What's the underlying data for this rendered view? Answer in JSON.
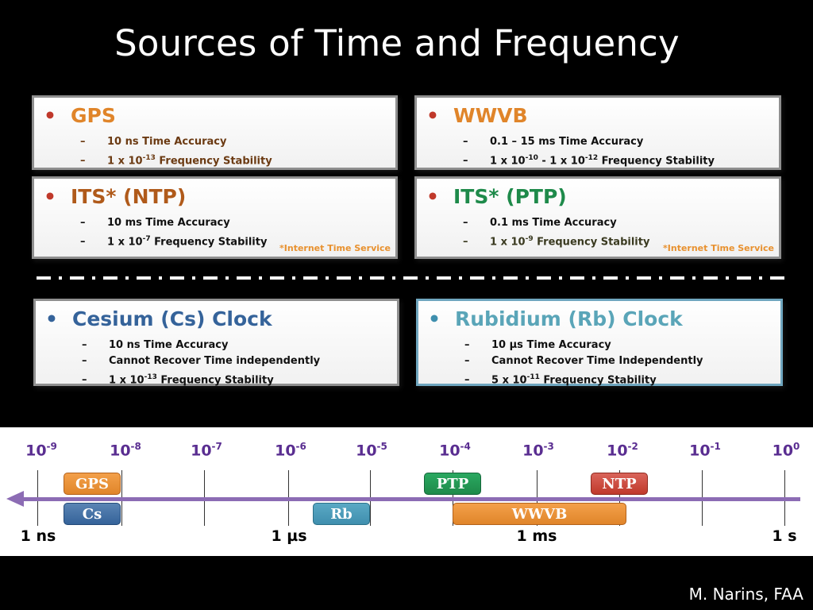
{
  "title": "Sources of Time and Frequency",
  "colors": {
    "orange": "#e0852a",
    "brown": "#b05a1a",
    "green": "#1e8a4a",
    "blue": "#35639a",
    "teal": "#3f8fae",
    "purple": "#5a2e91",
    "red": "#c0392b"
  },
  "cards": {
    "gps": {
      "bullet": "•",
      "title": "GPS",
      "items": [
        {
          "dash": "–",
          "a": "10 ns Time Accuracy"
        },
        {
          "dash": "–",
          "a": "1 x 10",
          "sup": "-13",
          "b": " Frequency Stability"
        }
      ]
    },
    "wwvb": {
      "bullet": "•",
      "title": "WWVB",
      "items": [
        {
          "dash": "–",
          "a": "0.1 – 15 ms Time Accuracy"
        },
        {
          "dash": "–",
          "a": "1 x 10",
          "sup": "-10",
          "b": " - 1 x 10",
          "sup2": "-12",
          "c": " Frequency Stability"
        }
      ]
    },
    "ntp": {
      "bullet": "•",
      "title": "ITS* (NTP)",
      "note": "*Internet Time Service",
      "items": [
        {
          "dash": "–",
          "a": "10 ms Time Accuracy"
        },
        {
          "dash": "–",
          "a": "1 x 10",
          "sup": "-7",
          "b": " Frequency Stability"
        }
      ]
    },
    "ptp": {
      "bullet": "•",
      "title": "ITS* (PTP)",
      "note": "*Internet Time Service",
      "items": [
        {
          "dash": "–",
          "a": "0.1 ms Time Accuracy"
        },
        {
          "dash": "–",
          "a": "1 x 10",
          "sup": "-9",
          "b": " Frequency Stability"
        }
      ]
    },
    "cs": {
      "bullet": "•",
      "title": "Cesium (Cs) Clock",
      "items": [
        {
          "dash": "–",
          "a": "10 ns Time Accuracy"
        },
        {
          "dash": "–",
          "a": "Cannot Recover Time independently"
        },
        {
          "dash": "–",
          "a": "1 x 10",
          "sup": "-13",
          "b": " Frequency Stability"
        }
      ]
    },
    "rb": {
      "bullet": "•",
      "title": "Rubidium (Rb) Clock",
      "items": [
        {
          "dash": "–",
          "a": "10 µs Time Accuracy"
        },
        {
          "dash": "–",
          "a": "Cannot Recover Time Independently"
        },
        {
          "dash": "–",
          "a": "5 x 10",
          "sup": "-11",
          "b": " Frequency Stability"
        }
      ]
    }
  },
  "scale": {
    "base": "10",
    "exponents": [
      "-9",
      "-8",
      "-7",
      "-6",
      "-5",
      "-4",
      "-3",
      "-2",
      "-1",
      "0"
    ],
    "bottom_labels": [
      "1 ns",
      "1 µs",
      "1 ms",
      "1 s"
    ],
    "boxes": {
      "gps": "GPS",
      "cs": "Cs",
      "rb": "Rb",
      "ptp": "PTP",
      "wwvb": "WWVB",
      "ntp": "NTP"
    }
  },
  "credit": "M. Narins, FAA"
}
